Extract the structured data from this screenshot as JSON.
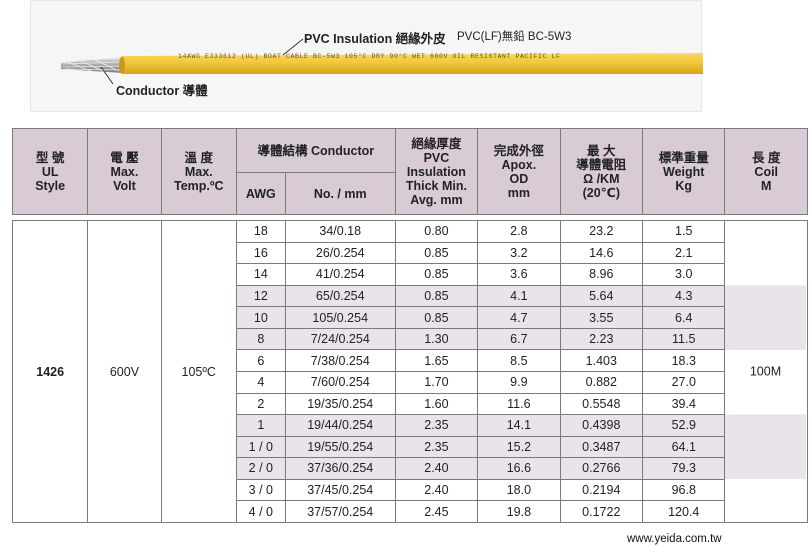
{
  "cable": {
    "pvc_label": "PVC Insulation 絕緣外皮",
    "lf_label": "PVC(LF)無鉛 BC-5W3",
    "conductor_label": "Conductor 導體",
    "print_text": "14AWG   E333612   (UL)   BOAT   CABLE   BC-5W3   105°C   DRY   90°C   WET   600V   OIL   RESISTANT   PACIFIC   LF",
    "colors": {
      "jacket": "#f3c83a",
      "jacket_dark": "#d9a921",
      "wire": "#b9b9b9",
      "print": "#6b5418"
    }
  },
  "table": {
    "headers": {
      "style": [
        "型 號",
        "UL",
        "Style"
      ],
      "volt": [
        "電 壓",
        "Max.",
        "Volt"
      ],
      "temp": [
        "溫 度",
        "Max.",
        "Temp.ºC"
      ],
      "conductor": "導體結構 Conductor",
      "awg": "AWG",
      "no_mm": "No. / mm",
      "insulation": [
        "絕緣厚度",
        "PVC",
        "Insulation",
        "Thick Min.",
        "Avg. mm"
      ],
      "od": [
        "完成外徑",
        "Apox.",
        "OD",
        "mm"
      ],
      "resistance": [
        "最 大",
        "導體電阻",
        "Ω /KM",
        "(20℃)"
      ],
      "weight": [
        "標準重量",
        "Weight",
        "Kg"
      ],
      "coil": [
        "長 度",
        "Coil",
        "M"
      ]
    },
    "style": "1426",
    "volt": "600V",
    "temp": "105ºC",
    "coil": "100M",
    "rows": [
      {
        "awg": "18",
        "no_mm": "34/0.18",
        "insulation": "0.80",
        "od": "2.8",
        "resistance": "23.2",
        "weight": "1.5"
      },
      {
        "awg": "16",
        "no_mm": "26/0.254",
        "insulation": "0.85",
        "od": "3.2",
        "resistance": "14.6",
        "weight": "2.1"
      },
      {
        "awg": "14",
        "no_mm": "41/0.254",
        "insulation": "0.85",
        "od": "3.6",
        "resistance": "8.96",
        "weight": "3.0"
      },
      {
        "awg": "12",
        "no_mm": "65/0.254",
        "insulation": "0.85",
        "od": "4.1",
        "resistance": "5.64",
        "weight": "4.3"
      },
      {
        "awg": "10",
        "no_mm": "105/0.254",
        "insulation": "0.85",
        "od": "4.7",
        "resistance": "3.55",
        "weight": "6.4"
      },
      {
        "awg": "8",
        "no_mm": "7/24/0.254",
        "insulation": "1.30",
        "od": "6.7",
        "resistance": "2.23",
        "weight": "11.5"
      },
      {
        "awg": "6",
        "no_mm": "7/38/0.254",
        "insulation": "1.65",
        "od": "8.5",
        "resistance": "1.403",
        "weight": "18.3"
      },
      {
        "awg": "4",
        "no_mm": "7/60/0.254",
        "insulation": "1.70",
        "od": "9.9",
        "resistance": "0.882",
        "weight": "27.0"
      },
      {
        "awg": "2",
        "no_mm": "19/35/0.254",
        "insulation": "1.60",
        "od": "11.6",
        "resistance": "0.5548",
        "weight": "39.4"
      },
      {
        "awg": "1",
        "no_mm": "19/44/0.254",
        "insulation": "2.35",
        "od": "14.1",
        "resistance": "0.4398",
        "weight": "52.9"
      },
      {
        "awg": "1 / 0",
        "no_mm": "19/55/0.254",
        "insulation": "2.35",
        "od": "15.2",
        "resistance": "0.3487",
        "weight": "64.1"
      },
      {
        "awg": "2 / 0",
        "no_mm": "37/36/0.254",
        "insulation": "2.40",
        "od": "16.6",
        "resistance": "0.2766",
        "weight": "79.3"
      },
      {
        "awg": "3 / 0",
        "no_mm": "37/45/0.254",
        "insulation": "2.40",
        "od": "18.0",
        "resistance": "0.2194",
        "weight": "96.8"
      },
      {
        "awg": "4 / 0",
        "no_mm": "37/57/0.254",
        "insulation": "2.45",
        "od": "19.8",
        "resistance": "0.1722",
        "weight": "120.4"
      }
    ],
    "colors": {
      "header_bg": "#d8cbd6",
      "shade_bg": "#ebe3ea",
      "border": "#7a7a7a"
    }
  },
  "footer": {
    "url": "www.yeida.com.tw"
  }
}
